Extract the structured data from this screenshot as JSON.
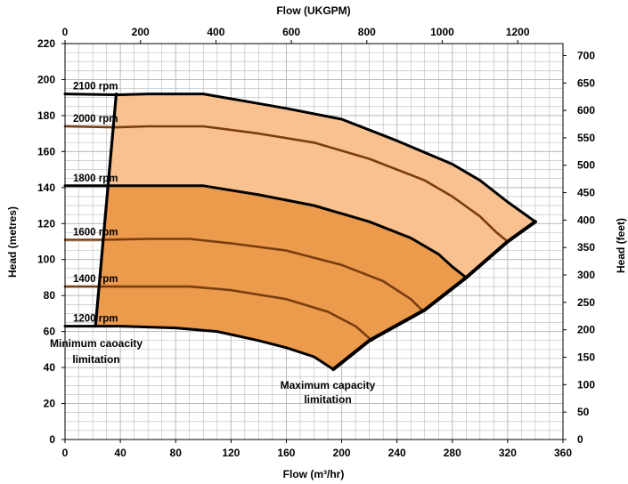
{
  "chart_data": {
    "type": "line",
    "xlabel": "Flow (m³/hr)",
    "ylabel": "Head (metres)",
    "top_xlabel": "Flow (UKGPM)",
    "right_ylabel": "Head (feet)",
    "xlim": [
      0,
      360
    ],
    "ylim": [
      0,
      220
    ],
    "top_xlim": [
      0,
      1320
    ],
    "right_ylim": [
      0,
      721.8
    ],
    "x_ticks": [
      0,
      40,
      80,
      120,
      160,
      200,
      240,
      280,
      320,
      360
    ],
    "y_ticks": [
      0,
      20,
      40,
      60,
      80,
      100,
      120,
      140,
      160,
      180,
      200,
      220
    ],
    "top_ticks": [
      0,
      200,
      400,
      600,
      800,
      1000,
      1200
    ],
    "right_ticks": [
      0,
      50,
      100,
      150,
      200,
      250,
      300,
      350,
      400,
      450,
      500,
      550,
      600,
      650,
      700
    ],
    "grid": true,
    "colors": {
      "outer_fill": "#f8c18f",
      "inner_fill": "#ec9a4c",
      "black_curve": "#000000",
      "brown_curve": "#7a3d10",
      "grid": "#b9b9b9"
    },
    "series": [
      {
        "name": "2100 rpm",
        "color": "black",
        "x": [
          0,
          37,
          60,
          100,
          130,
          160,
          200,
          240,
          280,
          300,
          320,
          340
        ],
        "y": [
          192,
          191.5,
          192,
          192,
          188,
          184,
          178,
          166,
          153,
          144,
          132,
          121
        ]
      },
      {
        "name": "2000 rpm",
        "color": "brown",
        "x": [
          0,
          37,
          60,
          100,
          140,
          180,
          220,
          260,
          280,
          300,
          312,
          320
        ],
        "y": [
          174,
          173.5,
          174,
          174,
          170,
          165,
          156,
          144,
          135,
          124,
          115,
          110
        ]
      },
      {
        "name": "1800 rpm",
        "color": "black",
        "x": [
          0,
          32,
          60,
          100,
          140,
          180,
          220,
          250,
          270,
          280,
          290
        ],
        "y": [
          141,
          141,
          141,
          141,
          136,
          130,
          121,
          112,
          103,
          96,
          90
        ]
      },
      {
        "name": "1600 rpm",
        "color": "brown",
        "x": [
          0,
          28,
          60,
          90,
          120,
          160,
          200,
          230,
          250,
          258
        ],
        "y": [
          111,
          111,
          111.5,
          111.5,
          109,
          105,
          97,
          88,
          78,
          72
        ]
      },
      {
        "name": "1400 rpm",
        "color": "brown",
        "x": [
          0,
          25,
          60,
          90,
          120,
          160,
          190,
          210,
          222
        ],
        "y": [
          85,
          85,
          85,
          85,
          83,
          78,
          71,
          63,
          55
        ]
      },
      {
        "name": "1200 rpm",
        "color": "black",
        "x": [
          0,
          22,
          40,
          80,
          110,
          140,
          160,
          180,
          194
        ],
        "y": [
          63,
          63,
          63,
          62,
          60,
          55,
          51,
          46,
          39
        ]
      }
    ],
    "minimum_capacity_limitation": {
      "x": [
        22,
        37
      ],
      "y": [
        63,
        192
      ]
    },
    "maximum_capacity_limitation": {
      "x": [
        194,
        220,
        260,
        290,
        320,
        340
      ],
      "y": [
        39,
        55,
        72,
        90,
        110,
        121
      ]
    },
    "annotations": {
      "min_capacity_line1": "Minimum caoacity",
      "min_capacity_line2": "limitation",
      "max_capacity_line1": "Maximum capacity",
      "max_capacity_line2": "limitation"
    }
  }
}
